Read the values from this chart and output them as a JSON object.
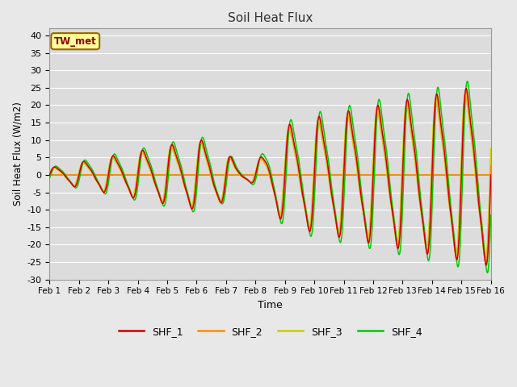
{
  "title": "Soil Heat Flux",
  "xlabel": "Time",
  "ylabel": "Soil Heat Flux (W/m2)",
  "ylim": [
    -30,
    42
  ],
  "yticks": [
    -30,
    -25,
    -20,
    -15,
    -10,
    -5,
    0,
    5,
    10,
    15,
    20,
    25,
    30,
    35,
    40
  ],
  "annotation": "TW_met",
  "annotation_color": "#8B0000",
  "annotation_bg": "#FFFF99",
  "annotation_border": "#996600",
  "bg_color": "#E8E8E8",
  "plot_bg_color": "#DCDCDC",
  "grid_color": "#FFFFFF",
  "colors": {
    "SHF_1": "#CC0000",
    "SHF_2": "#FF8C00",
    "SHF_3": "#CCCC00",
    "SHF_4": "#00CC00"
  },
  "zero_line_color": "#FF8C00",
  "x_labels": [
    "Feb 1",
    "Feb 2",
    "Feb 3",
    "Feb 4",
    "Feb 5",
    "Feb 6",
    "Feb 7",
    "Feb 8",
    "Feb 9",
    "Feb 10",
    "Feb 11",
    "Feb 12",
    "Feb 13",
    "Feb 14",
    "Feb 15",
    "Feb 16"
  ]
}
